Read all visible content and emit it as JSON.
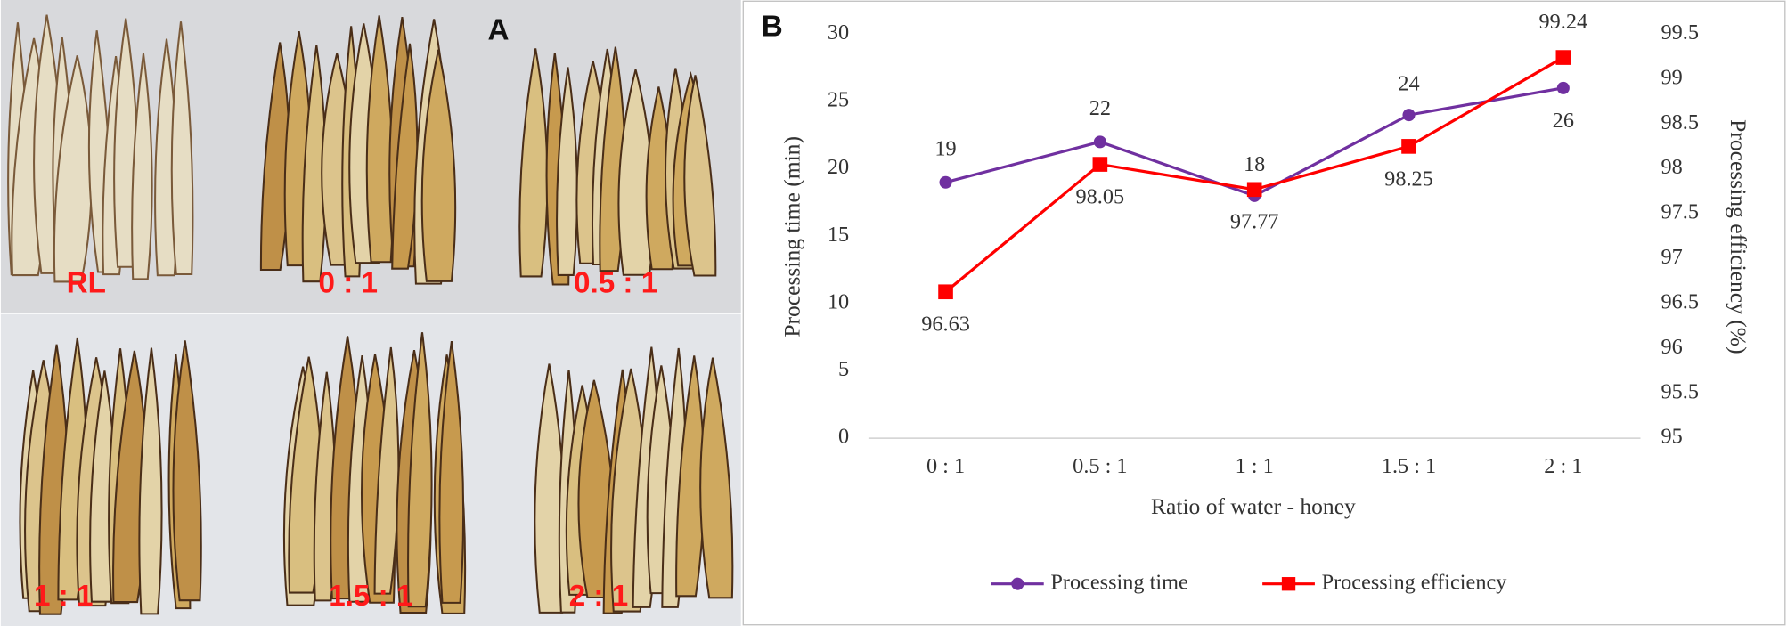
{
  "panel_a": {
    "letter": "A",
    "labels": [
      "RL",
      "0 : 1",
      "0.5 : 1",
      "1 : 1",
      "1.5 : 1",
      "2 : 1"
    ]
  },
  "chart_data": {
    "type": "line",
    "panel_letter": "B",
    "x_label": "Ratio of water - honey",
    "y_label": "Processing time (min)",
    "y2_label": "Processing efficiency (%)",
    "categories": [
      "0 : 1",
      "0.5 : 1",
      "1 : 1",
      "1.5 : 1",
      "2 : 1"
    ],
    "series": [
      {
        "name": "Processing time",
        "color": "#7030a0",
        "marker": "circle",
        "axis": "y",
        "values": [
          19,
          22,
          18,
          24,
          26
        ]
      },
      {
        "name": "Processing efficiency",
        "color": "#ff0000",
        "marker": "square",
        "axis": "y2",
        "values": [
          96.63,
          98.05,
          97.77,
          98.25,
          99.24
        ]
      }
    ],
    "ylim": [
      0,
      30
    ],
    "yticks": [
      0,
      5,
      10,
      15,
      20,
      25,
      30
    ],
    "y2lim": [
      95,
      99.5
    ],
    "y2ticks": [
      95,
      95.5,
      96,
      96.5,
      97,
      97.5,
      98,
      98.5,
      99,
      99.5
    ],
    "grid": false,
    "legend": "bottom"
  }
}
